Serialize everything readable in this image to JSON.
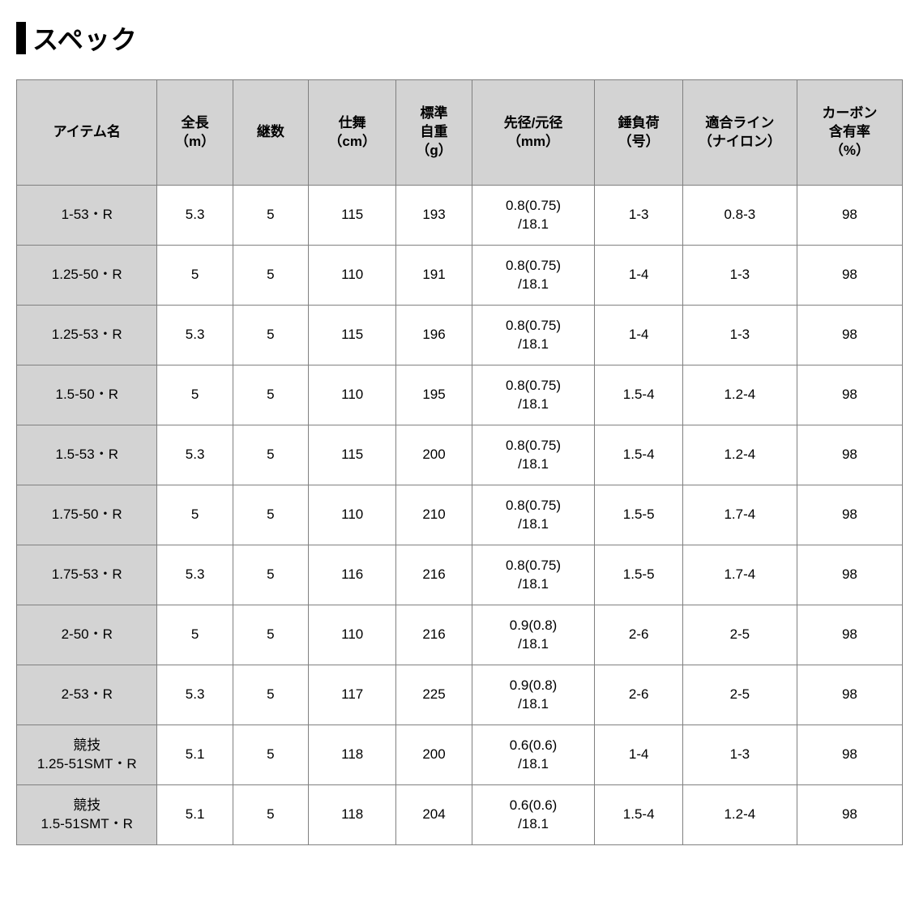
{
  "title": "スペック",
  "columns": {
    "item": "アイテム名",
    "length": "全長\n（m）",
    "pieces": "継数",
    "closed": "仕舞\n（cm）",
    "weight": "標準\n自重\n（g）",
    "diameter": "先径/元径\n（mm）",
    "sinker": "錘負荷\n（号）",
    "line": "適合ライン\n（ナイロン）",
    "carbon": "カーボン\n含有率\n（%）"
  },
  "rows": [
    {
      "item": "1-53・R",
      "length": "5.3",
      "pieces": "5",
      "closed": "115",
      "weight": "193",
      "diameter": "0.8(0.75)\n/18.1",
      "sinker": "1-3",
      "line": "0.8-3",
      "carbon": "98"
    },
    {
      "item": "1.25-50・R",
      "length": "5",
      "pieces": "5",
      "closed": "110",
      "weight": "191",
      "diameter": "0.8(0.75)\n/18.1",
      "sinker": "1-4",
      "line": "1-3",
      "carbon": "98"
    },
    {
      "item": "1.25-53・R",
      "length": "5.3",
      "pieces": "5",
      "closed": "115",
      "weight": "196",
      "diameter": "0.8(0.75)\n/18.1",
      "sinker": "1-4",
      "line": "1-3",
      "carbon": "98"
    },
    {
      "item": "1.5-50・R",
      "length": "5",
      "pieces": "5",
      "closed": "110",
      "weight": "195",
      "diameter": "0.8(0.75)\n/18.1",
      "sinker": "1.5-4",
      "line": "1.2-4",
      "carbon": "98"
    },
    {
      "item": "1.5-53・R",
      "length": "5.3",
      "pieces": "5",
      "closed": "115",
      "weight": "200",
      "diameter": "0.8(0.75)\n/18.1",
      "sinker": "1.5-4",
      "line": "1.2-4",
      "carbon": "98"
    },
    {
      "item": "1.75-50・R",
      "length": "5",
      "pieces": "5",
      "closed": "110",
      "weight": "210",
      "diameter": "0.8(0.75)\n/18.1",
      "sinker": "1.5-5",
      "line": "1.7-4",
      "carbon": "98"
    },
    {
      "item": "1.75-53・R",
      "length": "5.3",
      "pieces": "5",
      "closed": "116",
      "weight": "216",
      "diameter": "0.8(0.75)\n/18.1",
      "sinker": "1.5-5",
      "line": "1.7-4",
      "carbon": "98"
    },
    {
      "item": "2-50・R",
      "length": "5",
      "pieces": "5",
      "closed": "110",
      "weight": "216",
      "diameter": "0.9(0.8)\n/18.1",
      "sinker": "2-6",
      "line": "2-5",
      "carbon": "98"
    },
    {
      "item": "2-53・R",
      "length": "5.3",
      "pieces": "5",
      "closed": "117",
      "weight": "225",
      "diameter": "0.9(0.8)\n/18.1",
      "sinker": "2-6",
      "line": "2-5",
      "carbon": "98"
    },
    {
      "item": "競技\n1.25-51SMT・R",
      "length": "5.1",
      "pieces": "5",
      "closed": "118",
      "weight": "200",
      "diameter": "0.6(0.6)\n/18.1",
      "sinker": "1-4",
      "line": "1-3",
      "carbon": "98"
    },
    {
      "item": "競技\n1.5-51SMT・R",
      "length": "5.1",
      "pieces": "5",
      "closed": "118",
      "weight": "204",
      "diameter": "0.6(0.6)\n/18.1",
      "sinker": "1.5-4",
      "line": "1.2-4",
      "carbon": "98"
    }
  ],
  "style": {
    "header_bg": "#d3d3d3",
    "cell_bg": "#ffffff",
    "item_col_bg": "#d3d3d3",
    "border_color": "#808080",
    "title_bar_color": "#000000",
    "text_color": "#000000",
    "title_fontsize": 32,
    "cell_fontsize": 17
  }
}
